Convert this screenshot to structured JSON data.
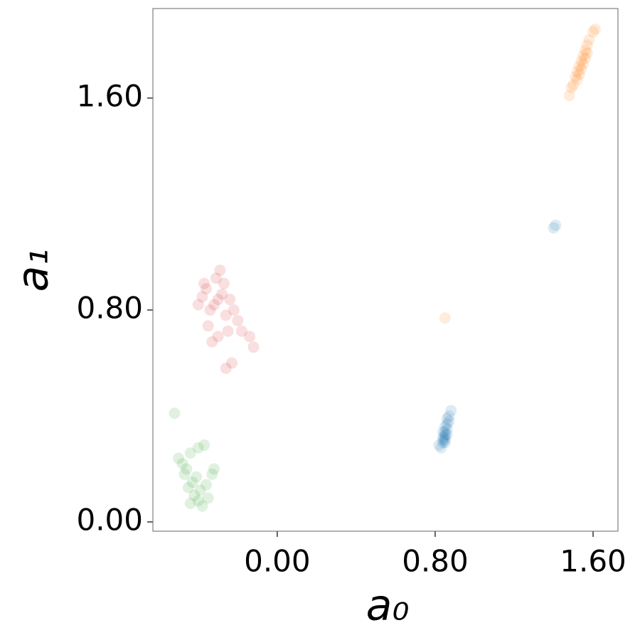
{
  "chart_data": {
    "type": "scatter",
    "xlabel": "a₀",
    "ylabel": "a₁",
    "xlim": [
      -0.63,
      1.726
    ],
    "ylim": [
      -0.035,
      1.938
    ],
    "xticks": [
      {
        "value": 0,
        "label": "0.00"
      },
      {
        "value": 0.8,
        "label": "0.80"
      },
      {
        "value": 1.6,
        "label": "1.60"
      }
    ],
    "yticks": [
      {
        "value": 0,
        "label": "0.00"
      },
      {
        "value": 0.8,
        "label": "0.80"
      },
      {
        "value": 1.6,
        "label": "1.60"
      }
    ],
    "alpha": 0.15,
    "series": [
      {
        "color": "#1f77b4",
        "x": [
          0.85,
          0.84,
          0.85,
          0.86,
          0.84,
          0.85,
          0.86,
          0.87,
          0.88,
          0.83,
          0.82,
          0.85,
          0.86,
          0.84,
          0.85,
          0.87,
          0.86,
          0.84,
          0.85,
          1.41,
          1.4
        ],
        "y": [
          0.3,
          0.31,
          0.33,
          0.35,
          0.32,
          0.34,
          0.37,
          0.4,
          0.42,
          0.28,
          0.29,
          0.31,
          0.33,
          0.34,
          0.36,
          0.38,
          0.39,
          0.3,
          0.32,
          1.12,
          1.11
        ]
      },
      {
        "color": "#ff7f0e",
        "x": [
          1.48,
          1.5,
          1.51,
          1.52,
          1.53,
          1.54,
          1.55,
          1.56,
          1.57,
          1.58,
          1.6,
          1.61,
          1.52,
          1.54,
          1.56,
          1.53,
          1.55,
          1.49,
          1.57,
          0.85
        ],
        "y": [
          1.61,
          1.65,
          1.68,
          1.7,
          1.72,
          1.74,
          1.76,
          1.78,
          1.8,
          1.82,
          1.85,
          1.86,
          1.67,
          1.71,
          1.75,
          1.69,
          1.73,
          1.64,
          1.77,
          0.77
        ]
      },
      {
        "color": "#d62728",
        "x": [
          -0.32,
          -0.3,
          -0.34,
          -0.28,
          -0.36,
          -0.31,
          -0.29,
          -0.38,
          -0.26,
          -0.22,
          -0.2,
          -0.25,
          -0.3,
          -0.35,
          -0.33,
          -0.18,
          -0.14,
          -0.12,
          -0.26,
          -0.23,
          -0.4,
          -0.37,
          -0.27,
          -0.24
        ],
        "y": [
          0.82,
          0.84,
          0.8,
          0.86,
          0.88,
          0.92,
          0.95,
          0.85,
          0.78,
          0.8,
          0.76,
          0.72,
          0.7,
          0.74,
          0.68,
          0.72,
          0.7,
          0.66,
          0.58,
          0.6,
          0.82,
          0.9,
          0.9,
          0.84
        ]
      },
      {
        "color": "#2ca02c",
        "x": [
          -0.43,
          -0.45,
          -0.41,
          -0.39,
          -0.47,
          -0.42,
          -0.4,
          -0.36,
          -0.33,
          -0.32,
          -0.48,
          -0.5,
          -0.44,
          -0.4,
          -0.37,
          -0.35,
          -0.44,
          -0.38,
          -0.46,
          -0.52
        ],
        "y": [
          0.15,
          0.13,
          0.17,
          0.12,
          0.18,
          0.1,
          0.08,
          0.14,
          0.18,
          0.2,
          0.22,
          0.24,
          0.26,
          0.28,
          0.29,
          0.09,
          0.07,
          0.06,
          0.2,
          0.41
        ]
      }
    ]
  }
}
